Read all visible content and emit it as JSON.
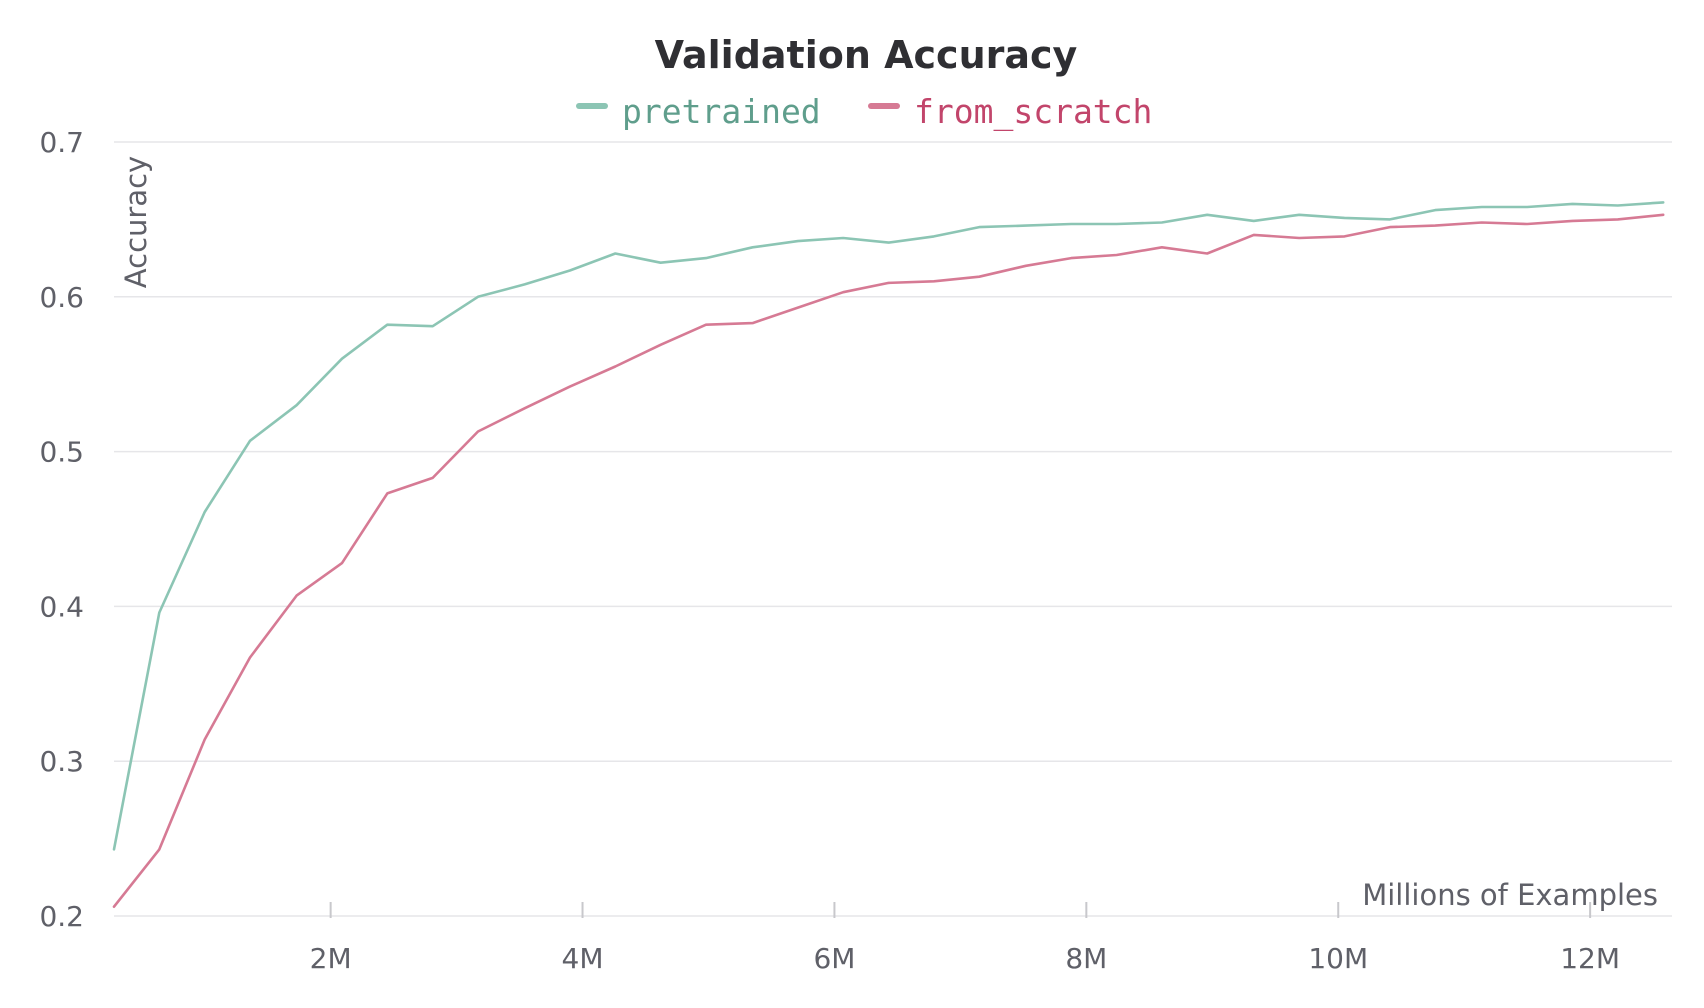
{
  "chart_data": {
    "type": "line",
    "title": "Validation Accuracy",
    "xlabel": "Millions of Examples",
    "ylabel": "Accuracy",
    "xlim": [
      0.28,
      12.65
    ],
    "ylim": [
      0.2,
      0.7
    ],
    "grid": true,
    "legend_position": "top-center",
    "x_ticks": [
      {
        "value": 2,
        "label": "2M"
      },
      {
        "value": 4,
        "label": "4M"
      },
      {
        "value": 6,
        "label": "6M"
      },
      {
        "value": 8,
        "label": "8M"
      },
      {
        "value": 10,
        "label": "10M"
      },
      {
        "value": 12,
        "label": "12M"
      }
    ],
    "y_ticks": [
      {
        "value": 0.2,
        "label": "0.2"
      },
      {
        "value": 0.3,
        "label": "0.3"
      },
      {
        "value": 0.4,
        "label": "0.4"
      },
      {
        "value": 0.5,
        "label": "0.5"
      },
      {
        "value": 0.6,
        "label": "0.6"
      },
      {
        "value": 0.7,
        "label": "0.7"
      }
    ],
    "x": [
      0.28,
      0.64,
      1.0,
      1.36,
      1.73,
      2.09,
      2.45,
      2.81,
      3.17,
      3.54,
      3.9,
      4.26,
      4.62,
      4.98,
      5.35,
      5.71,
      6.07,
      6.43,
      6.79,
      7.15,
      7.52,
      7.88,
      8.24,
      8.6,
      8.96,
      9.33,
      9.69,
      10.05,
      10.41,
      10.77,
      11.14,
      11.5,
      11.86,
      12.22,
      12.58
    ],
    "series": [
      {
        "name": "pretrained",
        "color": "#8cc5b4",
        "text_color": "#5f9e8c",
        "values": [
          0.243,
          0.396,
          0.461,
          0.507,
          0.53,
          0.56,
          0.582,
          0.581,
          0.6,
          0.608,
          0.617,
          0.628,
          0.622,
          0.625,
          0.632,
          0.636,
          0.638,
          0.635,
          0.639,
          0.645,
          0.646,
          0.647,
          0.647,
          0.648,
          0.653,
          0.649,
          0.653,
          0.651,
          0.65,
          0.656,
          0.658,
          0.658,
          0.66,
          0.659,
          0.661
        ]
      },
      {
        "name": "from_scratch",
        "color": "#d67a94",
        "text_color": "#c2456b",
        "values": [
          0.206,
          0.243,
          0.314,
          0.367,
          0.407,
          0.428,
          0.473,
          0.483,
          0.513,
          0.528,
          0.542,
          0.555,
          0.569,
          0.582,
          0.583,
          0.593,
          0.603,
          0.609,
          0.61,
          0.613,
          0.62,
          0.625,
          0.627,
          0.632,
          0.628,
          0.64,
          0.638,
          0.639,
          0.645,
          0.646,
          0.648,
          0.647,
          0.649,
          0.65,
          0.653
        ]
      }
    ]
  }
}
